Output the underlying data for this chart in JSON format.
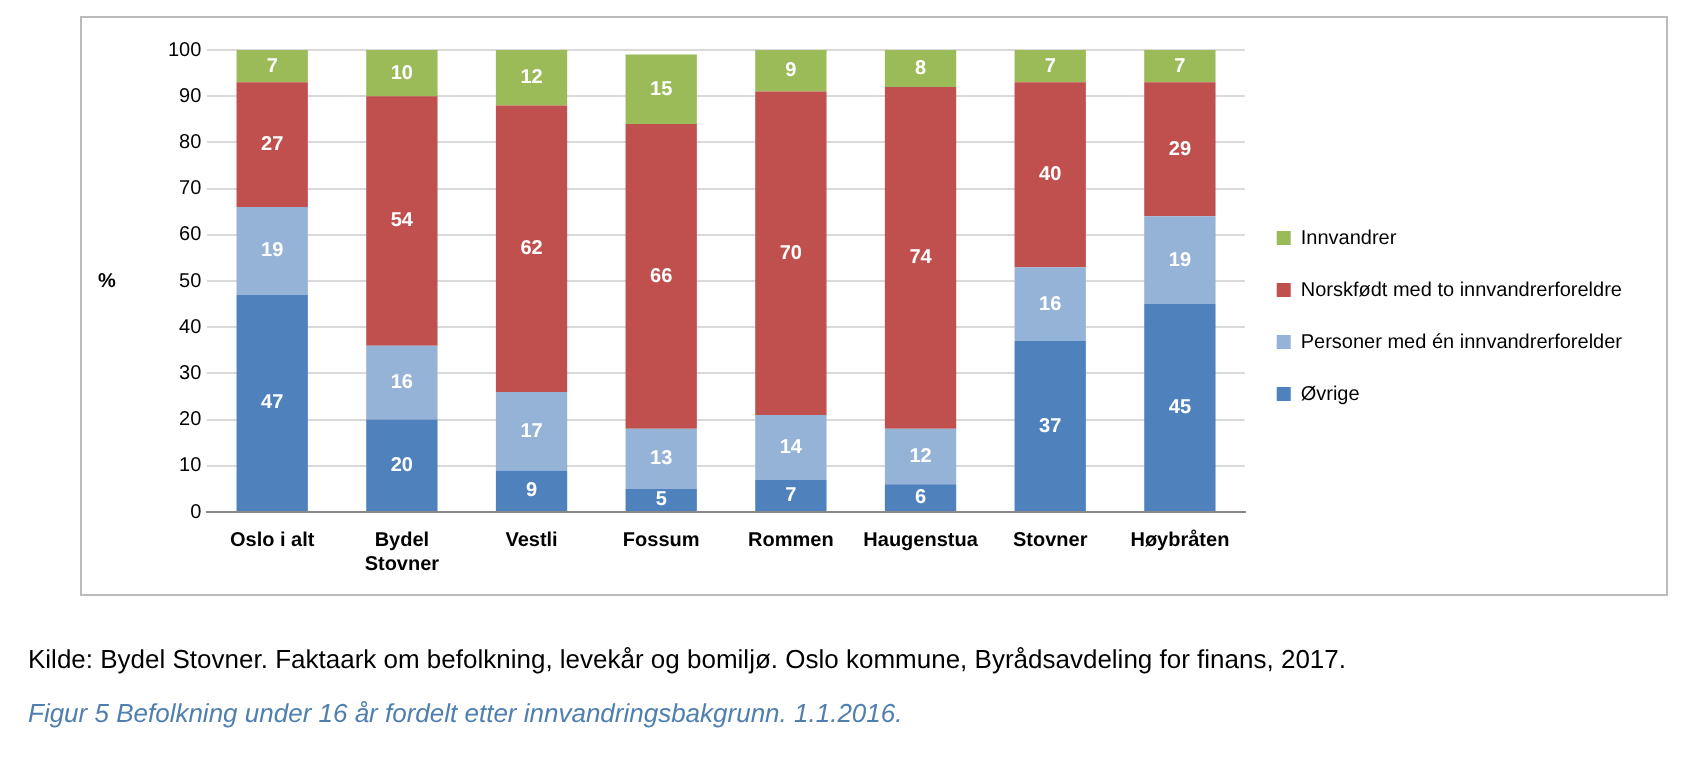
{
  "chart_data": {
    "type": "bar",
    "stacked": true,
    "ylabel": "%",
    "categories": [
      "Oslo i alt",
      "Bydel Stovner",
      "Vestli",
      "Fossum",
      "Rommen",
      "Haugenstua",
      "Stovner",
      "Høybråten"
    ],
    "series": [
      {
        "name": "Øvrige",
        "color": "#4f81bd",
        "values": [
          47,
          20,
          9,
          5,
          7,
          6,
          37,
          45
        ]
      },
      {
        "name": "Personer med én innvandrerforelder",
        "color": "#95b3d7",
        "values": [
          19,
          16,
          17,
          13,
          14,
          12,
          16,
          19
        ]
      },
      {
        "name": "Norskfødt med to innvandrerforeldre",
        "color": "#c0504d",
        "values": [
          27,
          54,
          62,
          66,
          70,
          74,
          40,
          29
        ]
      },
      {
        "name": "Innvandrer",
        "color": "#9bbb59",
        "values": [
          7,
          10,
          12,
          15,
          9,
          8,
          7,
          7
        ]
      }
    ],
    "ylim": [
      0,
      100
    ],
    "yticks": [
      0,
      10,
      20,
      30,
      40,
      50,
      60,
      70,
      80,
      90,
      100
    ],
    "grid": "y",
    "legend": "right",
    "data_labels": true,
    "annotations": [
      "Kilde: Bydel Stovner. Faktaark om befolkning, levekår og bomiljø. Oslo kommune, Byrådsavdeling for finans, 2017.",
      "Figur 5 Befolkning under 16 år fordelt etter innvandringsbakgrunn. 1.1.2016."
    ]
  }
}
